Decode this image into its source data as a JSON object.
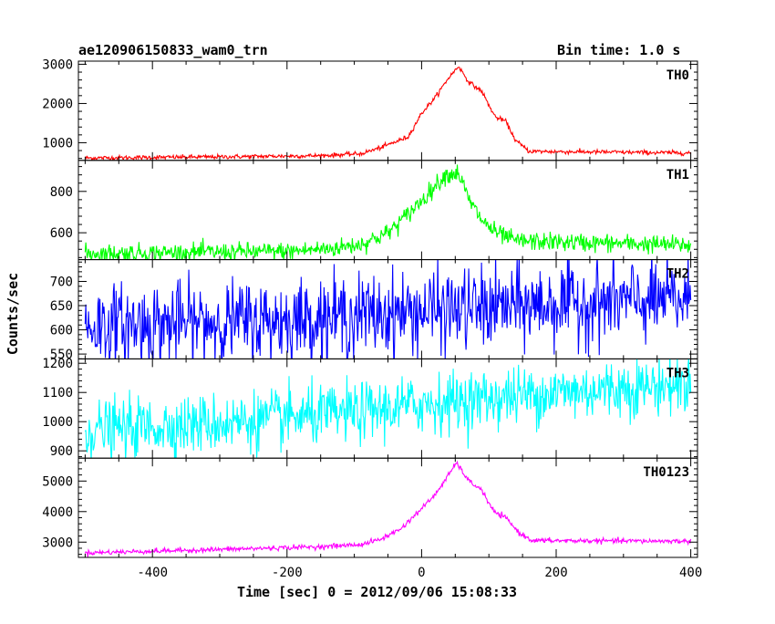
{
  "header": {
    "title": "ae120906150833_wam0_trn",
    "bin_time": "Bin time: 1.0 s"
  },
  "chart_data": {
    "type": "line",
    "title": "ae120906150833_wam0_trn",
    "subtitle": "Bin time: 1.0 s",
    "xlabel": "Time [sec] 0 = 2012/09/06 15:08:33",
    "ylabel": "Counts/sec",
    "xlim": [
      -510,
      410
    ],
    "x_ticks": [
      -400,
      -200,
      0,
      200,
      400
    ],
    "x_start": -500,
    "x_end": 400,
    "x_step": 1,
    "panels": [
      {
        "name": "TH0",
        "color": "#ff0000",
        "ylim": [
          550,
          3080
        ],
        "y_ticks": [
          1000,
          2000,
          3000
        ],
        "noise": 28,
        "shape": [
          [
            -500,
            610
          ],
          [
            -300,
            640
          ],
          [
            -150,
            670
          ],
          [
            -90,
            720
          ],
          [
            -60,
            880
          ],
          [
            -20,
            1150
          ],
          [
            0,
            1750
          ],
          [
            20,
            2150
          ],
          [
            40,
            2650
          ],
          [
            55,
            2950
          ],
          [
            70,
            2550
          ],
          [
            90,
            2300
          ],
          [
            100,
            1950
          ],
          [
            110,
            1650
          ],
          [
            125,
            1550
          ],
          [
            140,
            1050
          ],
          [
            160,
            780
          ],
          [
            400,
            740
          ]
        ]
      },
      {
        "name": "TH1",
        "color": "#00ff00",
        "ylim": [
          470,
          950
        ],
        "y_ticks": [
          600,
          800
        ],
        "noise": 22,
        "shape": [
          [
            -500,
            500
          ],
          [
            -200,
            510
          ],
          [
            -130,
            525
          ],
          [
            -90,
            545
          ],
          [
            -50,
            600
          ],
          [
            -20,
            690
          ],
          [
            10,
            790
          ],
          [
            35,
            880
          ],
          [
            55,
            890
          ],
          [
            70,
            760
          ],
          [
            90,
            660
          ],
          [
            110,
            600
          ],
          [
            140,
            560
          ],
          [
            400,
            540
          ]
        ]
      },
      {
        "name": "TH2",
        "color": "#0000ff",
        "ylim": [
          540,
          745
        ],
        "y_ticks": [
          550,
          600,
          650,
          700
        ],
        "noise": 42,
        "shape": [
          [
            -500,
            608
          ],
          [
            -200,
            620
          ],
          [
            0,
            638
          ],
          [
            200,
            653
          ],
          [
            400,
            662
          ]
        ]
      },
      {
        "name": "TH3",
        "color": "#00ffff",
        "ylim": [
          875,
          1215
        ],
        "y_ticks": [
          900,
          1000,
          1100,
          1200
        ],
        "noise": 50,
        "shape": [
          [
            -500,
            970
          ],
          [
            -300,
            995
          ],
          [
            -100,
            1030
          ],
          [
            0,
            1060
          ],
          [
            100,
            1080
          ],
          [
            200,
            1100
          ],
          [
            400,
            1130
          ]
        ]
      },
      {
        "name": "TH0123",
        "color": "#ff00ff",
        "ylim": [
          2500,
          5750
        ],
        "y_ticks": [
          3000,
          4000,
          5000
        ],
        "noise": 40,
        "shape": [
          [
            -500,
            2650
          ],
          [
            -300,
            2760
          ],
          [
            -150,
            2850
          ],
          [
            -90,
            2920
          ],
          [
            -60,
            3100
          ],
          [
            -30,
            3450
          ],
          [
            0,
            4100
          ],
          [
            20,
            4550
          ],
          [
            40,
            5200
          ],
          [
            52,
            5600
          ],
          [
            70,
            5000
          ],
          [
            90,
            4700
          ],
          [
            100,
            4250
          ],
          [
            110,
            3950
          ],
          [
            125,
            3800
          ],
          [
            145,
            3300
          ],
          [
            165,
            3050
          ],
          [
            400,
            3030
          ]
        ]
      }
    ]
  }
}
